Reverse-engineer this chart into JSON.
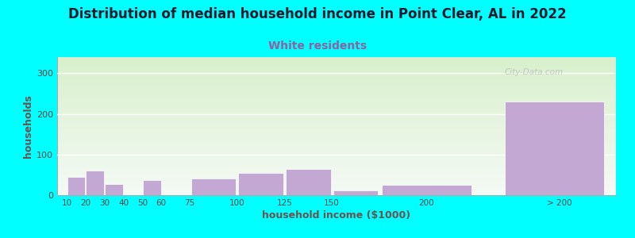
{
  "title": "Distribution of median household income in Point Clear, AL in 2022",
  "subtitle": "White residents",
  "xlabel": "household income ($1000)",
  "ylabel": "households",
  "background_color": "#00FFFF",
  "plot_bg_gradient_top": "#d8f0cc",
  "plot_bg_gradient_bottom": "#f5faf5",
  "bar_color": "#C4A8D4",
  "bar_edge_color": "#ffffff",
  "title_fontsize": 12,
  "subtitle_fontsize": 10,
  "subtitle_color": "#9060A0",
  "ylabel_color": "#705050",
  "xlabel_color": "#705050",
  "tick_color": "#604040",
  "categories": [
    "10",
    "20",
    "30",
    "40",
    "50",
    "60",
    "75",
    "100",
    "125",
    "150",
    "200",
    "> 200"
  ],
  "values": [
    45,
    60,
    28,
    0,
    38,
    0,
    42,
    55,
    65,
    12,
    25,
    230
  ],
  "bar_lefts": [
    10,
    20,
    30,
    40,
    50,
    60,
    75,
    100,
    125,
    150,
    175,
    240
  ],
  "bar_widths": [
    10,
    10,
    10,
    10,
    10,
    15,
    25,
    25,
    25,
    25,
    50,
    55
  ],
  "tick_positions": [
    10,
    20,
    30,
    40,
    50,
    60,
    75,
    100,
    125,
    150,
    200,
    270
  ],
  "tick_labels": [
    "10",
    "20",
    "30",
    "40",
    "50",
    "60",
    "75",
    "100",
    "125",
    "150",
    "200",
    "> 200"
  ],
  "xlim": [
    5,
    300
  ],
  "ylim": [
    0,
    340
  ],
  "yticks": [
    0,
    100,
    200,
    300
  ],
  "watermark": "City-Data.com"
}
